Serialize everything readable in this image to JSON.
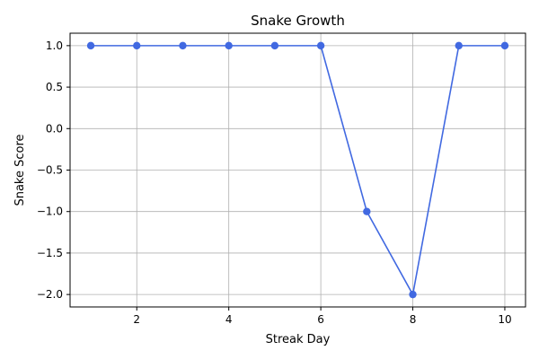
{
  "chart_data": {
    "type": "line",
    "title": "Snake Growth",
    "xlabel": "Streak Day",
    "ylabel": "Snake Score",
    "xlim": [
      0.55,
      10.45
    ],
    "ylim": [
      -2.15,
      1.15
    ],
    "xticks": [
      2,
      4,
      6,
      8,
      10
    ],
    "xtick_labels": [
      "2",
      "4",
      "6",
      "8",
      "10"
    ],
    "yticks": [
      1.0,
      0.5,
      0.0,
      -0.5,
      -1.0,
      -1.5,
      -2.0
    ],
    "ytick_labels": [
      "1.0",
      "0.5",
      "0.0",
      "−0.5",
      "−1.0",
      "−1.5",
      "−2.0"
    ],
    "grid": true,
    "series": [
      {
        "color": "#4169e1",
        "marker": "circle",
        "x": [
          1,
          2,
          3,
          4,
          5,
          6,
          7,
          8,
          9,
          10
        ],
        "y": [
          1,
          1,
          1,
          1,
          1,
          1,
          -1,
          -2,
          1,
          1
        ]
      }
    ]
  }
}
